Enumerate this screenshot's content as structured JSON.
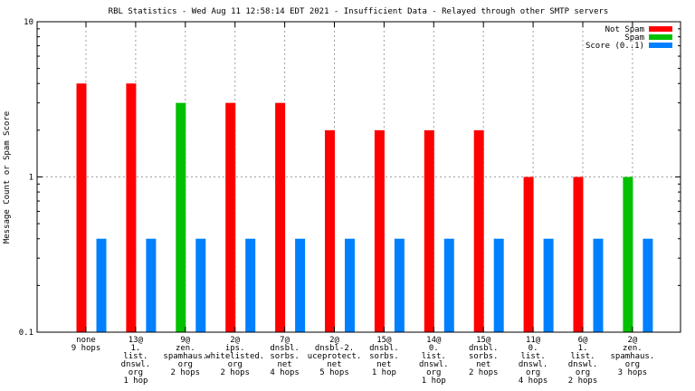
{
  "chart_data": {
    "type": "bar",
    "title": "RBL Statistics - Wed Aug 11 12:58:14 EDT 2021 - Insufficient Data - Relayed through other SMTP servers",
    "ylabel": "Message Count or Spam Score",
    "xlabel": "",
    "yscale": "log",
    "ylim": [
      0.1,
      10
    ],
    "yticks": [
      "0.1",
      "1",
      "10"
    ],
    "grid": true,
    "legend_position": "top-right",
    "categories": [
      [
        "none",
        "9 hops"
      ],
      [
        "13@",
        "1.",
        "list.",
        "dnswl.",
        "org",
        "1 hop"
      ],
      [
        "9@",
        "zen.",
        "spamhaus.",
        "org",
        "2 hops"
      ],
      [
        "2@",
        "ips.",
        "whitelisted.",
        "org",
        "2 hops"
      ],
      [
        "7@",
        "dnsbl.",
        "sorbs.",
        "net",
        "4 hops"
      ],
      [
        "2@",
        "dnsbl-2.",
        "uceprotect.",
        "net",
        "5 hops"
      ],
      [
        "15@",
        "dnsbl.",
        "sorbs.",
        "net",
        "1 hop"
      ],
      [
        "14@",
        "0.",
        "list.",
        "dnswl.",
        "org",
        "1 hop"
      ],
      [
        "15@",
        "dnsbl.",
        "sorbs.",
        "net",
        "2 hops"
      ],
      [
        "11@",
        "0.",
        "list.",
        "dnswl.",
        "org",
        "4 hops"
      ],
      [
        "6@",
        "1.",
        "list.",
        "dnswl.",
        "org",
        "2 hops"
      ],
      [
        "2@",
        "zen.",
        "spamhaus.",
        "org",
        "3 hops"
      ]
    ],
    "series": [
      {
        "name": "Not Spam",
        "color": "#ff0000",
        "values": [
          4,
          4,
          0,
          3,
          3,
          2,
          2,
          2,
          2,
          1,
          1,
          0
        ]
      },
      {
        "name": "Spam",
        "color": "#00c000",
        "values": [
          0,
          0,
          3,
          0,
          0,
          0,
          0,
          0,
          0,
          0,
          0,
          1
        ]
      },
      {
        "name": "Score (0..1)",
        "color": "#0080ff",
        "values": [
          0.4,
          0.4,
          0.4,
          0.4,
          0.4,
          0.4,
          0.4,
          0.4,
          0.4,
          0.4,
          0.4,
          0.4
        ]
      }
    ]
  }
}
